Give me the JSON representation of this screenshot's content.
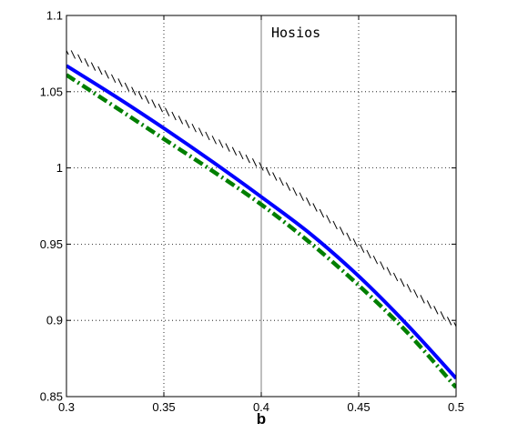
{
  "chart_data": {
    "type": "line",
    "title": "",
    "xlabel": "b",
    "ylabel": "",
    "xlim": [
      0.3,
      0.5
    ],
    "ylim": [
      0.85,
      1.1
    ],
    "xticks": [
      "0.3",
      "0.35",
      "0.4",
      "0.45",
      "0.5"
    ],
    "yticks": [
      "0.85",
      "0.9",
      "0.95",
      "1",
      "1.05",
      "1.1"
    ],
    "xtick_values": [
      0.3,
      0.35,
      0.4,
      0.45,
      0.5
    ],
    "ytick_values": [
      0.85,
      0.9,
      0.95,
      1.0,
      1.05,
      1.1
    ],
    "grid": true,
    "annotation": {
      "text": "Hosios",
      "x": 0.4
    },
    "x": [
      0.3,
      0.325,
      0.35,
      0.375,
      0.4,
      0.425,
      0.45,
      0.475,
      0.5
    ],
    "series": [
      {
        "style": "hatched",
        "color": "#000000",
        "values": [
          1.077,
          1.058,
          1.038,
          1.019,
          1.001,
          0.977,
          0.949,
          0.922,
          0.896
        ]
      },
      {
        "style": "solid",
        "color": "#0000ff",
        "values": [
          1.067,
          1.047,
          1.026,
          1.004,
          0.981,
          0.957,
          0.929,
          0.897,
          0.862
        ]
      },
      {
        "style": "dash-dot",
        "color": "#007f00",
        "values": [
          1.061,
          1.04,
          1.019,
          0.998,
          0.976,
          0.951,
          0.923,
          0.892,
          0.856
        ]
      }
    ]
  }
}
